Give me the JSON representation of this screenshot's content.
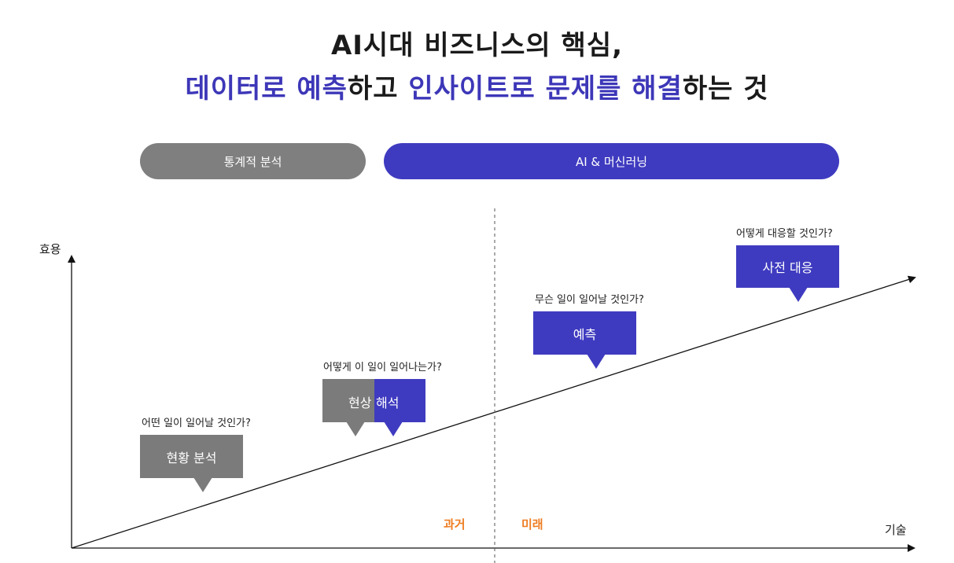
{
  "header": {
    "line1": "AI시대 비즈니스의 핵심,",
    "line2_parts": [
      {
        "text": "데이터로 예측",
        "color": "#3d37b8"
      },
      {
        "text": "하고 ",
        "color": "#1a1a1a"
      },
      {
        "text": "인사이트로 문제를 해결",
        "color": "#3d37b8"
      },
      {
        "text": "하는 것",
        "color": "#1a1a1a"
      }
    ]
  },
  "phases": {
    "statistical": "통계적 분석",
    "ai_ml": "AI & 머신러닝"
  },
  "axes": {
    "y_label": "효용",
    "x_label": "기술"
  },
  "eras": {
    "past": "과거",
    "future": "미래"
  },
  "stages": [
    {
      "question": "어떤 일이 일어날 것인가?",
      "label": "현황 분석"
    },
    {
      "question": "어떻게 이 일이 일어나는가?",
      "label_part1": "현상",
      "label_part2": "해석"
    },
    {
      "question": "무슨 일이 일어날 것인가?",
      "label": "예측"
    },
    {
      "question": "어떻게 대응할 것인가?",
      "label": "사전 대응"
    }
  ],
  "colors": {
    "accent_blue": "#3f3bc0",
    "gray": "#7b7b7b",
    "orange": "#ee7d22"
  }
}
